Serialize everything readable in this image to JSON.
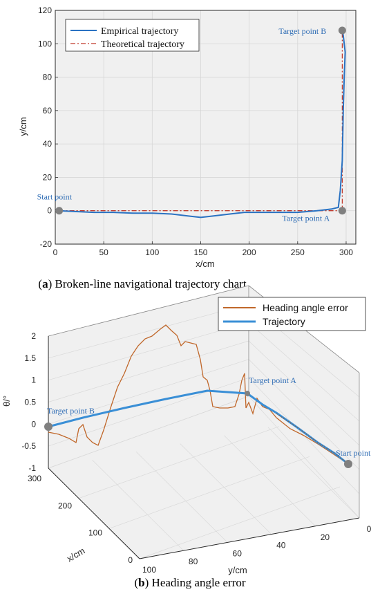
{
  "chart_data": [
    {
      "type": "line",
      "caption": {
        "prefix": "(",
        "letter": "a",
        "rest": ") Broken-line navigational trajectory chart"
      },
      "xlabel": "x/cm",
      "ylabel": "y/cm",
      "xlim": [
        0,
        310
      ],
      "ylim": [
        -20,
        120
      ],
      "xticks": [
        0,
        50,
        100,
        150,
        200,
        250,
        300
      ],
      "yticks": [
        -20,
        0,
        20,
        40,
        60,
        80,
        100,
        120
      ],
      "grid": true,
      "legend_position": "top-left",
      "series": [
        {
          "name": "Empirical trajectory",
          "color": "#2a72c2",
          "style": "solid",
          "x": [
            4,
            20,
            40,
            60,
            80,
            100,
            120,
            135,
            150,
            165,
            180,
            195,
            210,
            230,
            250,
            270,
            285,
            292,
            294,
            296,
            297,
            298,
            299,
            298,
            297,
            296
          ],
          "y": [
            0,
            -0.5,
            -1,
            -1,
            -1.5,
            -1.5,
            -2,
            -3,
            -4,
            -3,
            -2,
            -1,
            -1,
            -1,
            -1,
            0,
            1,
            2,
            12,
            30,
            60,
            80,
            95,
            100,
            105,
            108
          ]
        },
        {
          "name": "Theoretical trajectory",
          "color": "#c0392b",
          "style": "dash-dot",
          "x": [
            4,
            296,
            296
          ],
          "y": [
            0,
            0,
            108
          ]
        }
      ],
      "points": [
        {
          "label": "Start point",
          "x": 4,
          "y": 0
        },
        {
          "label": "Target point A",
          "x": 296,
          "y": 0
        },
        {
          "label": "Target point B",
          "x": 296,
          "y": 108
        }
      ]
    },
    {
      "type": "line",
      "caption": {
        "prefix": "(",
        "letter": "b",
        "rest": ") Heading angle error"
      },
      "xlabel": "x/cm",
      "ylabel": "y/cm",
      "zlabel": "θ/°",
      "xticks": [
        0,
        100,
        200,
        300
      ],
      "yticks": [
        0,
        20,
        40,
        60,
        80,
        100
      ],
      "zticks": [
        -1,
        -0.5,
        0,
        0.5,
        1,
        1.5,
        2
      ],
      "legend_position": "top-right",
      "series": [
        {
          "name": "Heading angle error",
          "color": "#c0672a"
        },
        {
          "name": "Trajectory",
          "color": "#3a8fd6"
        }
      ],
      "points": [
        {
          "label": "Target point B"
        },
        {
          "label": "Target point A"
        },
        {
          "label": "Start point"
        }
      ]
    }
  ]
}
